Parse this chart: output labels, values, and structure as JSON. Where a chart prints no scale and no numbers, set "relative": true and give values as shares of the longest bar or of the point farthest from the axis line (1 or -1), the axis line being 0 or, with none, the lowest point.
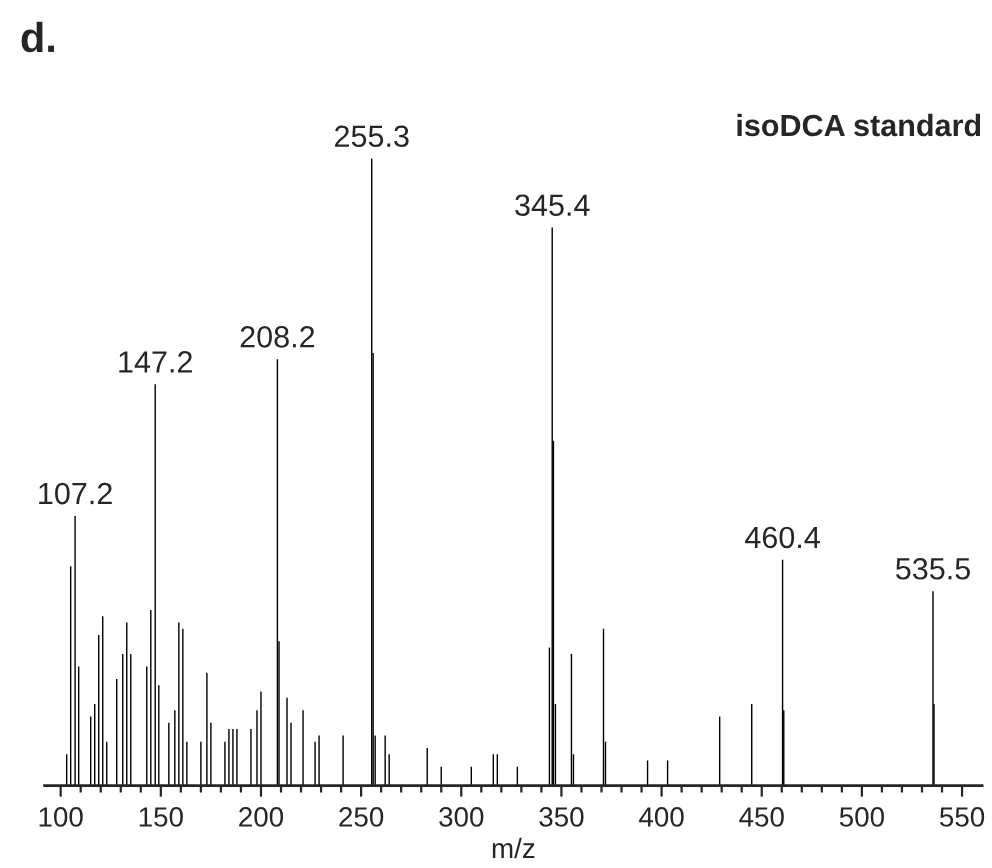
{
  "chart_data": {
    "type": "bar",
    "title": "d.",
    "subtitle": "isoDCA standard",
    "xlabel": "m/z",
    "relative": true,
    "x": [
      103,
      105,
      107.2,
      109,
      115,
      117,
      119,
      121,
      123,
      128,
      131,
      133,
      135,
      143,
      145,
      147.2,
      149,
      154,
      157,
      159,
      161,
      163,
      170,
      173,
      175,
      182,
      184,
      186,
      188,
      195,
      198,
      200,
      208.2,
      209,
      213,
      215,
      221,
      227,
      229,
      241,
      255.3,
      256,
      257,
      262,
      264,
      283,
      290,
      305,
      316,
      318,
      328,
      344,
      345.4,
      346,
      347,
      355,
      356,
      371,
      372,
      393,
      403,
      429,
      445,
      460.4,
      461,
      535.5,
      536
    ],
    "values": [
      0.05,
      0.35,
      0.43,
      0.19,
      0.11,
      0.13,
      0.24,
      0.27,
      0.07,
      0.17,
      0.21,
      0.26,
      0.21,
      0.19,
      0.28,
      0.64,
      0.16,
      0.1,
      0.12,
      0.26,
      0.25,
      0.07,
      0.07,
      0.18,
      0.1,
      0.07,
      0.09,
      0.09,
      0.09,
      0.09,
      0.12,
      0.15,
      0.68,
      0.23,
      0.14,
      0.1,
      0.12,
      0.07,
      0.08,
      0.08,
      1.0,
      0.69,
      0.08,
      0.08,
      0.05,
      0.06,
      0.03,
      0.03,
      0.05,
      0.05,
      0.03,
      0.22,
      0.89,
      0.55,
      0.13,
      0.21,
      0.05,
      0.25,
      0.07,
      0.04,
      0.04,
      0.11,
      0.13,
      0.36,
      0.12,
      0.31,
      0.13
    ],
    "color": "#000000",
    "xlim": [
      92,
      560
    ],
    "xticks": [
      100,
      {
        "value": 110,
        "label": null
      },
      {
        "value": 120,
        "label": null
      },
      {
        "value": 130,
        "label": null
      },
      {
        "value": 140,
        "label": null
      },
      150,
      {
        "value": 160,
        "label": null
      },
      {
        "value": 170,
        "label": null
      },
      {
        "value": 180,
        "label": null
      },
      {
        "value": 190,
        "label": null
      },
      200,
      {
        "value": 210,
        "label": null
      },
      {
        "value": 220,
        "label": null
      },
      {
        "value": 230,
        "label": null
      },
      {
        "value": 240,
        "label": null
      },
      250,
      {
        "value": 260,
        "label": null
      },
      {
        "value": 270,
        "label": null
      },
      {
        "value": 280,
        "label": null
      },
      {
        "value": 290,
        "label": null
      },
      300,
      {
        "value": 310,
        "label": null
      },
      {
        "value": 320,
        "label": null
      },
      {
        "value": 330,
        "label": null
      },
      {
        "value": 340,
        "label": null
      },
      350,
      {
        "value": 360,
        "label": null
      },
      {
        "value": 370,
        "label": null
      },
      {
        "value": 380,
        "label": null
      },
      {
        "value": 390,
        "label": null
      },
      400,
      {
        "value": 410,
        "label": null
      },
      {
        "value": 420,
        "label": null
      },
      {
        "value": 430,
        "label": null
      },
      {
        "value": 440,
        "label": null
      },
      450,
      {
        "value": 460,
        "label": null
      },
      {
        "value": 470,
        "label": null
      },
      {
        "value": 480,
        "label": null
      },
      {
        "value": 490,
        "label": null
      },
      500,
      {
        "value": 510,
        "label": null
      },
      {
        "value": 520,
        "label": null
      },
      {
        "value": 530,
        "label": null
      },
      {
        "value": 540,
        "label": null
      },
      550
    ],
    "annotations": [
      {
        "text": "107.2",
        "x": 107.2,
        "y": 0.43
      },
      {
        "text": "147.2",
        "x": 147.2,
        "y": 0.64
      },
      {
        "text": "208.2",
        "x": 208.2,
        "y": 0.68
      },
      {
        "text": "255.3",
        "x": 255.3,
        "y": 1.0
      },
      {
        "text": "345.4",
        "x": 345.4,
        "y": 0.89
      },
      {
        "text": "460.4",
        "x": 460.4,
        "y": 0.36
      },
      {
        "text": "535.5",
        "x": 535.5,
        "y": 0.31
      }
    ]
  }
}
